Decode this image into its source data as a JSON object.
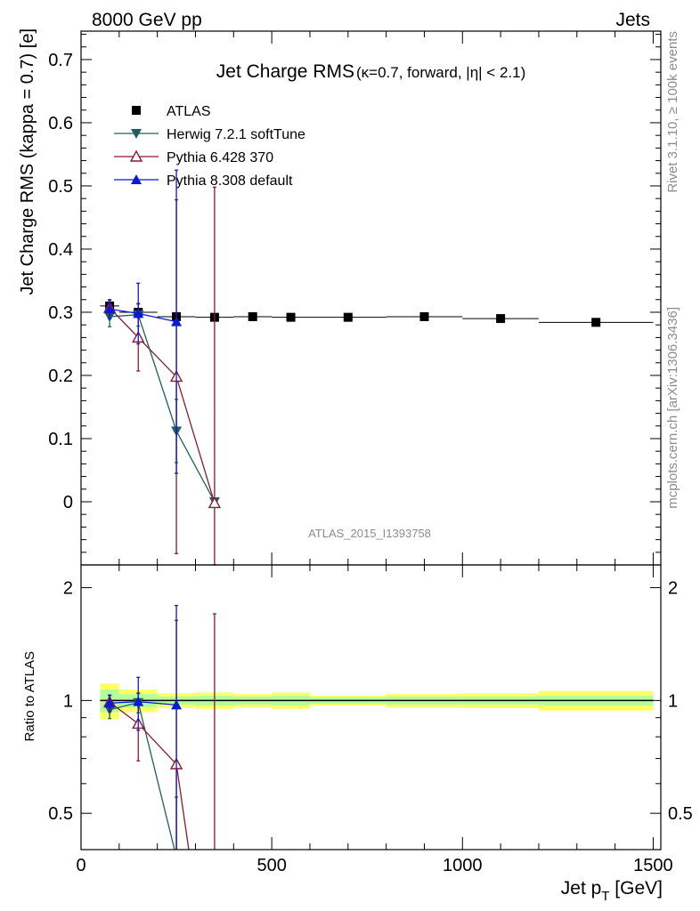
{
  "header": {
    "energy_label": "8000 GeV pp",
    "category_label": "Jets"
  },
  "side_labels": {
    "rivet": "Rivet 3.1.10, ≥ 100k events",
    "mcplots": "mcplots.cern.ch [arXiv:1306.3436]"
  },
  "chart_data": [
    {
      "type": "scatter",
      "title": "Jet Charge RMS",
      "subtitle": "(κ=0.7, forward, |η| < 2.1)",
      "analysis_id": "ATLAS_2015_I1393758",
      "xlabel": "Jet p",
      "xlabel_sub": "T",
      "xlabel_unit": " [GeV]",
      "ylabel": "Jet Charge RMS (kappa = 0.7) [e]",
      "xlim": [
        0,
        1520
      ],
      "ylim": [
        -0.1,
        0.745
      ],
      "x_ticks": [
        0,
        500,
        1000,
        1500
      ],
      "x_tick_labels": [
        "0",
        "500",
        "1000",
        "1500"
      ],
      "y_ticks": [
        0,
        0.1,
        0.2,
        0.3,
        0.4,
        0.5,
        0.6,
        0.7
      ],
      "y_tick_labels": [
        "0",
        "0.1",
        "0.2",
        "0.3",
        "0.4",
        "0.5",
        "0.6",
        "0.7"
      ],
      "legend_position": "top-left",
      "series": [
        {
          "name": "ATLAS",
          "color": "#000000",
          "marker": "square",
          "x": [
            75,
            150,
            250,
            350,
            450,
            550,
            700,
            900,
            1100,
            1350
          ],
          "y": [
            0.31,
            0.3,
            0.293,
            0.292,
            0.293,
            0.292,
            0.292,
            0.293,
            0.29,
            0.284
          ],
          "xerr": [
            25,
            50,
            50,
            50,
            50,
            50,
            100,
            100,
            100,
            150
          ]
        },
        {
          "name": "Herwig 7.2.1 softTune",
          "color": "#1f5f5f",
          "marker": "triangle-down",
          "x": [
            75,
            150,
            250,
            350
          ],
          "y": [
            0.293,
            0.296,
            0.112,
            0.0
          ],
          "err": [
            0.016,
            0.018,
            0.05,
            0.0
          ]
        },
        {
          "name": "Pythia 6.428 370",
          "color": "#8b1a2e",
          "marker": "triangle-open",
          "x": [
            75,
            150,
            250,
            350
          ],
          "y": [
            0.307,
            0.26,
            0.198,
            -0.002
          ],
          "err": [
            0.012,
            0.053,
            0.28,
            0.5
          ]
        },
        {
          "name": "Pythia 8.308 default",
          "color": "#0a18d8",
          "marker": "triangle-up",
          "x": [
            75,
            150,
            250
          ],
          "y": [
            0.305,
            0.298,
            0.285
          ],
          "err": [
            0.015,
            0.048,
            0.24
          ]
        }
      ]
    },
    {
      "type": "scatter",
      "ylabel": "Ratio to ATLAS",
      "xlim": [
        0,
        1520
      ],
      "ylim": [
        0.4,
        2.3
      ],
      "y_scale": "log",
      "y_ticks": [
        0.5,
        1,
        2
      ],
      "y_tick_labels": [
        "0.5",
        "1",
        "2"
      ],
      "x_ticks": [
        0,
        500,
        1000,
        1500
      ],
      "band_bins": [
        [
          50,
          100
        ],
        [
          100,
          200
        ],
        [
          200,
          300
        ],
        [
          300,
          400
        ],
        [
          400,
          500
        ],
        [
          500,
          600
        ],
        [
          600,
          800
        ],
        [
          800,
          1000
        ],
        [
          1000,
          1200
        ],
        [
          1200,
          1500
        ]
      ],
      "band_stat_frac": [
        0.07,
        0.04,
        0.025,
        0.03,
        0.025,
        0.03,
        0.02,
        0.025,
        0.025,
        0.03
      ],
      "band_total_frac": [
        0.11,
        0.07,
        0.045,
        0.05,
        0.04,
        0.05,
        0.03,
        0.04,
        0.045,
        0.06
      ],
      "band_colors": {
        "stat": "#ffff66",
        "total": "#b3ff99"
      },
      "series": [
        {
          "name": "Herwig 7.2.1 softTune",
          "color": "#1f5f5f",
          "marker": "triangle-down",
          "x": [
            75,
            150,
            250,
            350
          ],
          "y": [
            0.945,
            0.987,
            0.382,
            0.0
          ],
          "err": [
            0.05,
            0.06,
            0.17,
            0.0
          ]
        },
        {
          "name": "Pythia 6.428 370",
          "color": "#8b1a2e",
          "marker": "triangle-open",
          "x": [
            75,
            150,
            250,
            350
          ],
          "y": [
            0.99,
            0.867,
            0.676,
            -0.007
          ],
          "err": [
            0.04,
            0.177,
            0.96,
            1.71
          ]
        },
        {
          "name": "Pythia 8.308 default",
          "color": "#0a18d8",
          "marker": "triangle-up",
          "x": [
            75,
            150,
            250
          ],
          "y": [
            0.984,
            0.993,
            0.973
          ],
          "err": [
            0.05,
            0.16,
            0.82
          ]
        }
      ]
    }
  ]
}
